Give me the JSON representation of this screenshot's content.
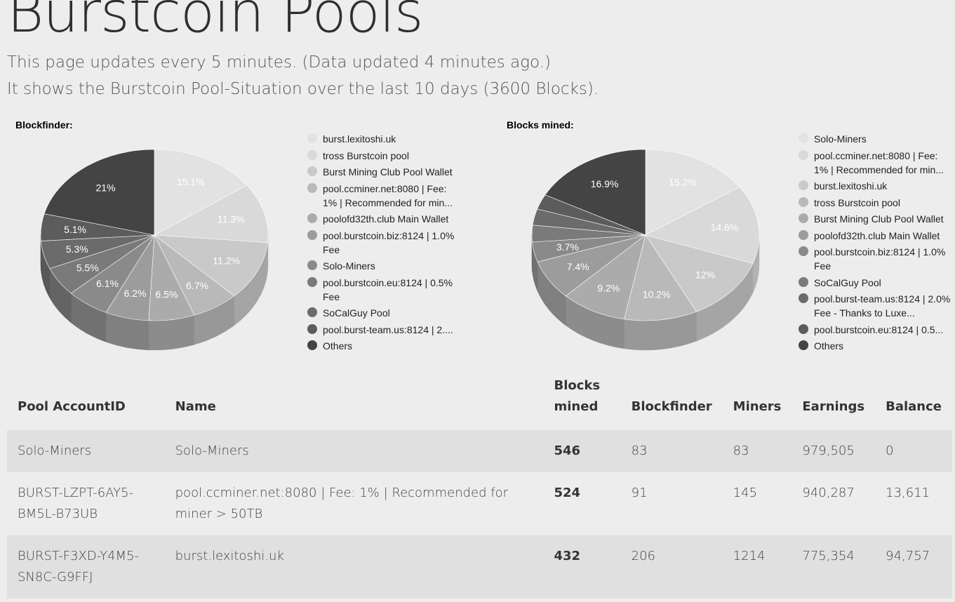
{
  "page": {
    "title": "Burstcoin Pools",
    "intro_line1": "This page updates every 5 minutes. (Data updated 4 minutes ago.)",
    "intro_line2": "It shows the Burstcoin Pool-Situation over the last 10 days (3600 Blocks)."
  },
  "chart_data": [
    {
      "type": "pie",
      "title": "Blockfinder:",
      "legend_position": "right",
      "labels": [
        "burst.lexitoshi.uk",
        "tross Burstcoin pool",
        "Burst Mining Club Pool Wallet",
        "pool.ccminer.net:8080 | Fee: 1% | Recommended for min...",
        "poolofd32th.club Main Wallet",
        "pool.burstcoin.biz:8124 | 1.0% Fee",
        "Solo-Miners",
        "pool.burstcoin.eu:8124 | 0.5% Fee",
        "SoCalGuy Pool",
        "pool.burst-team.us:8124 | 2....",
        "Others"
      ],
      "values": [
        15.1,
        11.3,
        11.2,
        6.7,
        6.5,
        6.2,
        6.1,
        5.5,
        5.3,
        5.1,
        21
      ],
      "data_labels": [
        "15.1%",
        "11.3%",
        "11.2%",
        "6.7%",
        "6.5%",
        "6.2%",
        "6.1%",
        "5.5%",
        "5.3%",
        "5.1%",
        "21%"
      ],
      "colors": [
        "#e2e2e2",
        "#d9d9d9",
        "#c9c9c9",
        "#b9b9b9",
        "#ababab",
        "#9c9c9c",
        "#8a8a8a",
        "#7a7a7a",
        "#6b6b6b",
        "#5c5c5c",
        "#444444"
      ]
    },
    {
      "type": "pie",
      "title": "Blocks mined:",
      "legend_position": "right",
      "labels": [
        "Solo-Miners",
        "pool.ccminer.net:8080 | Fee: 1% | Recommended for min...",
        "burst.lexitoshi.uk",
        "tross Burstcoin pool",
        "Burst Mining Club Pool Wallet",
        "poolofd32th.club Main Wallet",
        "pool.burstcoin.biz:8124 | 1.0% Fee",
        "SoCalGuy Pool",
        "pool.burst-team.us:8124 | 2.0% Fee - Thanks to Luxe...",
        "pool.burstcoin.eu:8124 | 0.5...",
        "Others"
      ],
      "values": [
        15.2,
        14.6,
        12,
        10.2,
        9.2,
        7.4,
        3.7,
        3.1,
        3,
        2.8,
        16.9
      ],
      "data_labels": [
        "15.2%",
        "14.6%",
        "12%",
        "10.2%",
        "9.2%",
        "7.4%",
        "3.7%",
        "",
        "",
        "",
        "16.9%"
      ],
      "colors": [
        "#e2e2e2",
        "#d9d9d9",
        "#c9c9c9",
        "#b9b9b9",
        "#ababab",
        "#9c9c9c",
        "#8a8a8a",
        "#7a7a7a",
        "#6b6b6b",
        "#5c5c5c",
        "#444444"
      ]
    }
  ],
  "table": {
    "headers": [
      "Pool AccountID",
      "Name",
      "Blocks mined",
      "Blockfinder",
      "Miners",
      "Earnings",
      "Balance"
    ],
    "rows": [
      [
        "Solo-Miners",
        "Solo-Miners",
        "546",
        "83",
        "83",
        "979,505",
        "0"
      ],
      [
        "BURST-LZPT-6AY5-BM5L-B73UB",
        "pool.ccminer.net:8080 | Fee: 1% | Recommended for miner > 50TB",
        "524",
        "91",
        "145",
        "940,287",
        "13,611"
      ],
      [
        "BURST-F3XD-Y4M5-SN8C-G9FFJ",
        "burst.lexitoshi.uk",
        "432",
        "206",
        "1214",
        "775,354",
        "94,757"
      ]
    ]
  }
}
